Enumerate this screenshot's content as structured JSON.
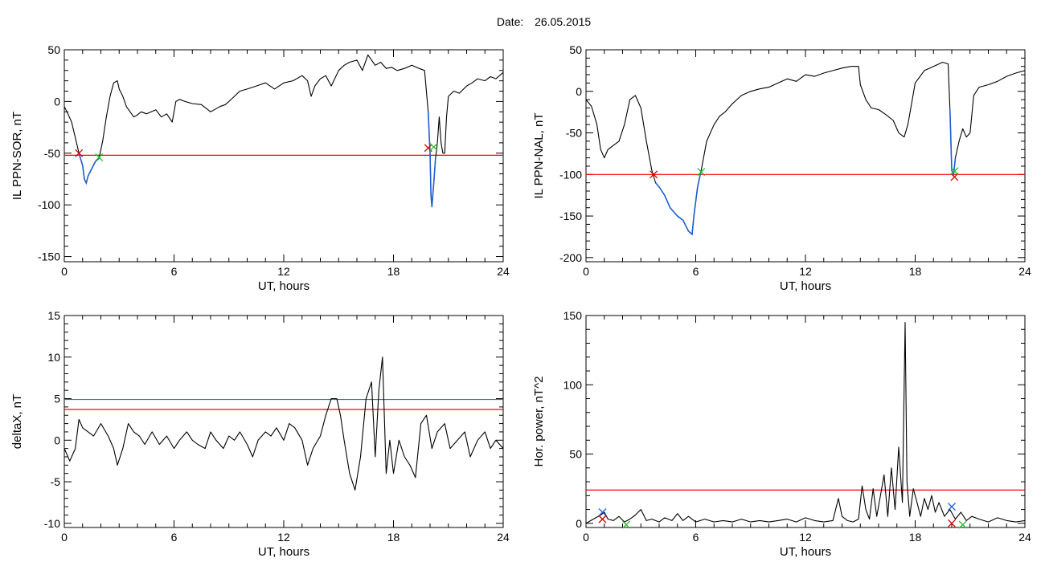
{
  "header": {
    "date_label": "Date:",
    "date_value": "26.05.2015"
  },
  "colors": {
    "trace": "#000000",
    "threshold_red": "#ff0000",
    "threshold_blue": "#1f77b4",
    "event_blue": "#1f5fd0",
    "marker_red": "#d00000",
    "marker_green": "#22bb22",
    "marker_blue": "#2060e0"
  },
  "chart_data": [
    {
      "type": "line",
      "panel": "top-left",
      "ylabel": "IL PPN-SOR, nT",
      "xlabel": "UT, hours",
      "xlim": [
        0,
        24
      ],
      "ylim": [
        -155,
        50
      ],
      "xticks": [
        0,
        6,
        12,
        18,
        24
      ],
      "yticks": [
        50,
        0,
        -50,
        -100,
        -150
      ],
      "series": [
        {
          "x": [
            0,
            0.2,
            0.4,
            0.6,
            0.8,
            1.0,
            1.1,
            1.2,
            1.3,
            1.5,
            1.7,
            1.9,
            2.1,
            2.3,
            2.5,
            2.7,
            2.9,
            3.0,
            3.2,
            3.4,
            3.6,
            3.8,
            4.0,
            4.2,
            4.5,
            5.0,
            5.3,
            5.6,
            5.9,
            6.1,
            6.3,
            6.6,
            7.0,
            7.5,
            8.0,
            8.5,
            8.8,
            9.0,
            9.3,
            9.6,
            10.0,
            10.5,
            11.0,
            11.5,
            12.0,
            12.5,
            13.0,
            13.3,
            13.5,
            13.7,
            14.0,
            14.3,
            14.6,
            15.0,
            15.3,
            15.6,
            16.0,
            16.3,
            16.6,
            17.0,
            17.3,
            17.6,
            17.9,
            18.2,
            18.6,
            19.0,
            19.4,
            19.7,
            19.9,
            20.0,
            20.05,
            20.1,
            20.2,
            20.3,
            20.4,
            20.5,
            20.6,
            20.7,
            20.8,
            20.9,
            21.0,
            21.3,
            21.6,
            22.0,
            22.3,
            22.6,
            23.0,
            23.3,
            23.6,
            24.0
          ],
          "y": [
            -5,
            -12,
            -20,
            -35,
            -50,
            -62,
            -75,
            -79,
            -72,
            -65,
            -58,
            -55,
            -38,
            -15,
            5,
            18,
            20,
            12,
            5,
            -5,
            -10,
            -15,
            -13,
            -10,
            -12,
            -8,
            -15,
            -12,
            -20,
            0,
            2,
            0,
            -2,
            -3,
            -10,
            -5,
            -3,
            0,
            5,
            10,
            12,
            15,
            18,
            12,
            18,
            20,
            25,
            20,
            5,
            15,
            22,
            25,
            15,
            30,
            35,
            38,
            40,
            30,
            45,
            35,
            38,
            32,
            33,
            30,
            32,
            35,
            32,
            30,
            -10,
            -50,
            -90,
            -102,
            -80,
            -55,
            -40,
            -15,
            -40,
            -50,
            -50,
            -15,
            5,
            10,
            8,
            15,
            18,
            22,
            20,
            24,
            22,
            28
          ]
        }
      ],
      "thresholds": [
        {
          "y": -52,
          "color": "red"
        }
      ],
      "events": [
        {
          "x0": 0.8,
          "x1": 1.9
        },
        {
          "x0": 19.9,
          "x1": 20.3
        }
      ],
      "markers": [
        {
          "x": 0.8,
          "y": -50,
          "color": "red"
        },
        {
          "x": 1.9,
          "y": -54,
          "color": "green"
        },
        {
          "x": 19.9,
          "y": -45,
          "color": "red"
        },
        {
          "x": 20.2,
          "y": -44,
          "color": "green"
        }
      ]
    },
    {
      "type": "line",
      "panel": "top-right",
      "ylabel": "IL PPN-NAL, nT",
      "xlabel": "UT, hours",
      "xlim": [
        0,
        24
      ],
      "ylim": [
        -205,
        50
      ],
      "xticks": [
        0,
        6,
        12,
        18,
        24
      ],
      "yticks": [
        50,
        0,
        -50,
        -100,
        -150,
        -200
      ],
      "series": [
        {
          "x": [
            0,
            0.3,
            0.6,
            0.8,
            1.0,
            1.2,
            1.5,
            1.8,
            2.1,
            2.4,
            2.7,
            3.0,
            3.3,
            3.6,
            3.8,
            4.0,
            4.3,
            4.6,
            5.0,
            5.3,
            5.6,
            5.8,
            5.9,
            6.1,
            6.3,
            6.6,
            7.0,
            7.3,
            7.6,
            8.0,
            8.5,
            9.0,
            9.5,
            10.0,
            10.5,
            11.0,
            11.5,
            12.0,
            12.5,
            13.0,
            13.5,
            14.0,
            14.5,
            14.9,
            15.0,
            15.3,
            15.6,
            16.0,
            16.4,
            16.8,
            17.1,
            17.4,
            17.6,
            17.8,
            18.0,
            18.5,
            19.0,
            19.5,
            19.8,
            19.9,
            20.0,
            20.1,
            20.2,
            20.4,
            20.6,
            20.8,
            21.0,
            21.2,
            21.5,
            22.0,
            22.5,
            23.0,
            23.5,
            24.0
          ],
          "y": [
            -10,
            -18,
            -40,
            -70,
            -80,
            -70,
            -65,
            -60,
            -40,
            -10,
            -5,
            -20,
            -60,
            -95,
            -110,
            -115,
            -125,
            -140,
            -150,
            -155,
            -168,
            -172,
            -150,
            -115,
            -95,
            -60,
            -40,
            -30,
            -25,
            -15,
            -5,
            0,
            3,
            5,
            10,
            15,
            12,
            20,
            18,
            22,
            25,
            28,
            30,
            30,
            8,
            -10,
            -20,
            -22,
            -28,
            -35,
            -50,
            -55,
            -40,
            -15,
            10,
            25,
            30,
            35,
            33,
            -20,
            -95,
            -100,
            -80,
            -60,
            -45,
            -55,
            -50,
            -5,
            5,
            8,
            12,
            18,
            22,
            25
          ]
        }
      ],
      "thresholds": [
        {
          "y": -100,
          "color": "red"
        }
      ],
      "events": [
        {
          "x0": 3.7,
          "x1": 6.3
        },
        {
          "x0": 19.9,
          "x1": 20.2
        }
      ],
      "markers": [
        {
          "x": 3.7,
          "y": -100,
          "color": "red"
        },
        {
          "x": 6.3,
          "y": -97,
          "color": "green"
        },
        {
          "x": 20.15,
          "y": -103,
          "color": "red"
        },
        {
          "x": 20.15,
          "y": -96,
          "color": "green"
        }
      ]
    },
    {
      "type": "line",
      "panel": "bottom-left",
      "ylabel": "deltaX, nT",
      "xlabel": "UT, hours",
      "xlim": [
        0,
        24
      ],
      "ylim": [
        -10.5,
        15
      ],
      "xticks": [
        0,
        6,
        12,
        18,
        24
      ],
      "yticks": [
        15,
        10,
        5,
        0,
        -5,
        -10
      ],
      "series": [
        {
          "x": [
            0,
            0.3,
            0.6,
            0.8,
            1.0,
            1.3,
            1.6,
            2.0,
            2.4,
            2.7,
            2.9,
            3.2,
            3.5,
            3.8,
            4.1,
            4.4,
            4.8,
            5.2,
            5.6,
            6.0,
            6.3,
            6.7,
            7.0,
            7.3,
            7.7,
            8.0,
            8.3,
            8.7,
            9.0,
            9.3,
            9.6,
            10.0,
            10.3,
            10.6,
            11.0,
            11.3,
            11.6,
            12.0,
            12.3,
            12.6,
            13.0,
            13.3,
            13.6,
            14.0,
            14.3,
            14.6,
            14.9,
            15.1,
            15.3,
            15.6,
            15.9,
            16.2,
            16.5,
            16.8,
            17.0,
            17.2,
            17.4,
            17.5,
            17.6,
            17.8,
            18.0,
            18.3,
            18.6,
            18.9,
            19.2,
            19.5,
            19.8,
            20.1,
            20.4,
            20.8,
            21.1,
            21.5,
            21.9,
            22.2,
            22.6,
            23.0,
            23.3,
            23.6,
            24.0
          ],
          "y": [
            -1,
            -2.5,
            -1,
            2.5,
            1.5,
            1,
            0.5,
            2,
            0.5,
            -1,
            -3,
            -1,
            2,
            1,
            0.5,
            -0.5,
            1,
            -0.5,
            0.5,
            -1,
            0,
            1,
            0,
            -0.5,
            -1,
            1,
            0,
            -1,
            0.5,
            0,
            1,
            -0.5,
            -2,
            0,
            1,
            0.5,
            1.5,
            0,
            2,
            1.5,
            0,
            -3,
            -1,
            0.5,
            3,
            5,
            5,
            3,
            0,
            -4,
            -6,
            -2,
            5,
            7,
            -2,
            6,
            10,
            3,
            -4,
            0,
            -4,
            0,
            -2,
            -3,
            -4.5,
            2,
            3,
            -1,
            1,
            2,
            -1,
            0,
            1,
            -2,
            0,
            1,
            -1,
            0,
            -1
          ]
        }
      ],
      "thresholds": [
        {
          "y": 4.9,
          "color": "blue"
        },
        {
          "y": 3.7,
          "color": "red"
        }
      ]
    },
    {
      "type": "line",
      "panel": "bottom-right",
      "ylabel": "Hor. power, nT^2",
      "xlabel": "UT, hours",
      "xlim": [
        0,
        24
      ],
      "ylim": [
        -3,
        150
      ],
      "xticks": [
        0,
        6,
        12,
        18,
        24
      ],
      "yticks": [
        150,
        100,
        50,
        0
      ],
      "series": [
        {
          "x": [
            0,
            0.4,
            0.8,
            1.0,
            1.2,
            1.5,
            1.8,
            2.1,
            2.4,
            2.7,
            3.0,
            3.3,
            3.6,
            4.0,
            4.3,
            4.7,
            5.0,
            5.3,
            5.6,
            6.0,
            6.5,
            7.0,
            7.5,
            8.0,
            8.5,
            9.0,
            9.5,
            10.0,
            10.5,
            11.0,
            11.5,
            12.0,
            12.5,
            13.0,
            13.5,
            13.8,
            14.0,
            14.3,
            14.6,
            14.9,
            15.1,
            15.3,
            15.5,
            15.7,
            15.9,
            16.1,
            16.3,
            16.5,
            16.7,
            16.9,
            17.1,
            17.3,
            17.45,
            17.55,
            17.7,
            17.9,
            18.1,
            18.3,
            18.5,
            18.7,
            18.9,
            19.1,
            19.3,
            19.6,
            19.9,
            20.2,
            20.5,
            20.8,
            21.1,
            21.5,
            22.0,
            22.5,
            23.0,
            23.5,
            24.0
          ],
          "y": [
            0,
            3,
            6,
            8,
            3,
            2,
            5,
            1,
            3,
            6,
            10,
            2,
            3,
            1,
            4,
            2,
            7,
            2,
            5,
            1,
            3,
            1,
            2,
            1,
            3,
            1,
            2,
            1,
            2,
            3,
            1,
            4,
            2,
            1,
            2,
            18,
            5,
            2,
            1,
            3,
            27,
            10,
            3,
            25,
            5,
            20,
            35,
            5,
            40,
            10,
            55,
            15,
            145,
            30,
            5,
            25,
            15,
            5,
            18,
            10,
            20,
            8,
            15,
            5,
            10,
            3,
            8,
            2,
            5,
            3,
            1,
            4,
            2,
            1,
            2
          ]
        }
      ],
      "thresholds": [
        {
          "y": 24,
          "color": "red"
        }
      ],
      "markers": [
        {
          "x": 0.9,
          "y": 8,
          "color": "blue"
        },
        {
          "x": 0.9,
          "y": 3,
          "color": "red"
        },
        {
          "x": 2.2,
          "y": -1,
          "color": "green"
        },
        {
          "x": 20.0,
          "y": 12,
          "color": "blue"
        },
        {
          "x": 20.0,
          "y": 0,
          "color": "red"
        },
        {
          "x": 20.6,
          "y": -1,
          "color": "green"
        }
      ]
    }
  ]
}
